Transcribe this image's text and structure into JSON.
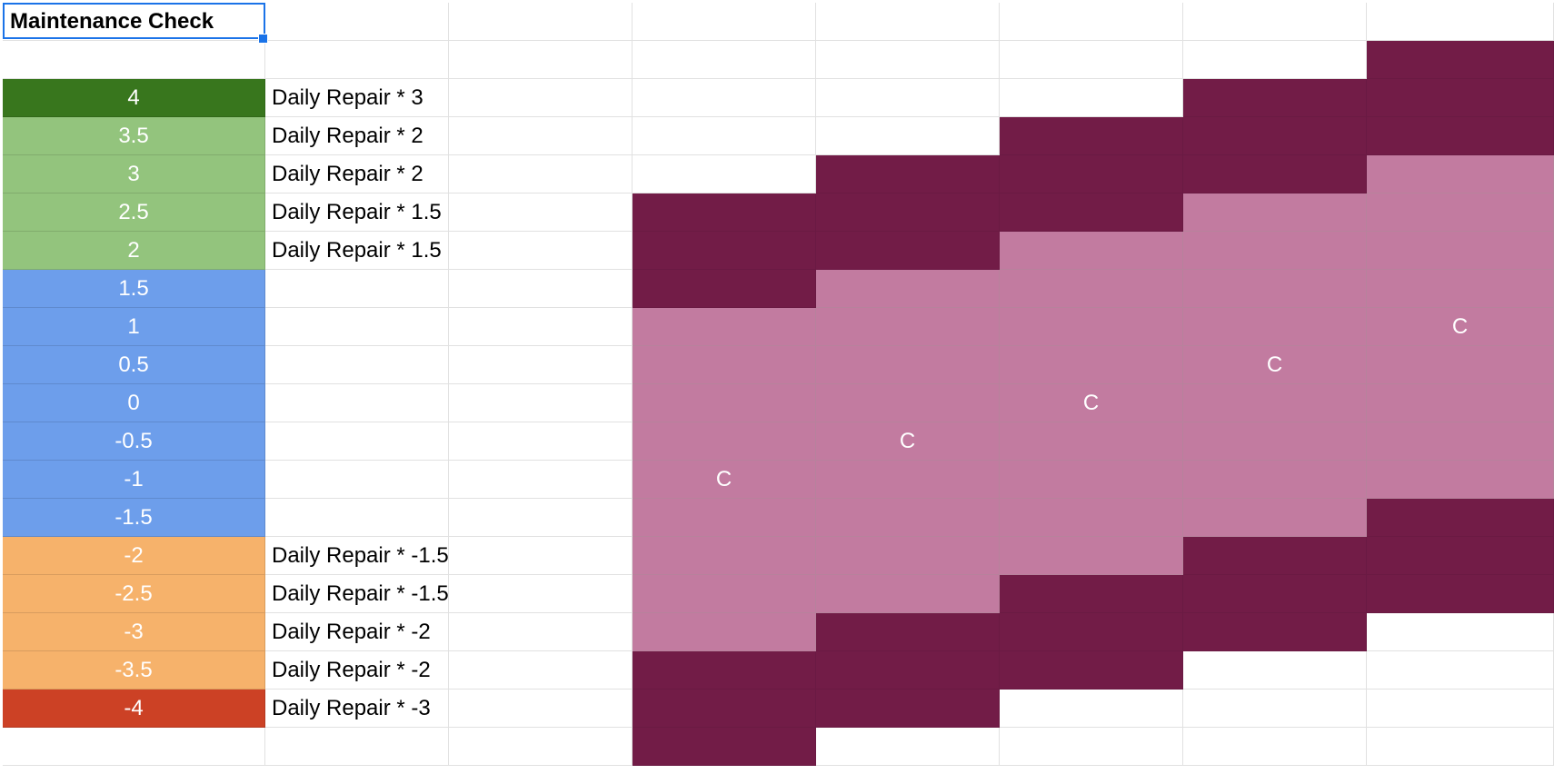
{
  "sheet": {
    "title": "Maintenance Check",
    "levels": [
      {
        "value": "4",
        "color": "#38761d",
        "repair": "Daily Repair * 3"
      },
      {
        "value": "3.5",
        "color": "#93c47d",
        "repair": "Daily Repair * 2"
      },
      {
        "value": "3",
        "color": "#93c47d",
        "repair": "Daily Repair * 2"
      },
      {
        "value": "2.5",
        "color": "#93c47d",
        "repair": "Daily Repair * 1.5"
      },
      {
        "value": "2",
        "color": "#93c47d",
        "repair": "Daily Repair * 1.5"
      },
      {
        "value": "1.5",
        "color": "#6d9eeb",
        "repair": ""
      },
      {
        "value": "1",
        "color": "#6d9eeb",
        "repair": ""
      },
      {
        "value": "0.5",
        "color": "#6d9eeb",
        "repair": ""
      },
      {
        "value": "0",
        "color": "#6d9eeb",
        "repair": ""
      },
      {
        "value": "-0.5",
        "color": "#6d9eeb",
        "repair": ""
      },
      {
        "value": "-1",
        "color": "#6d9eeb",
        "repair": ""
      },
      {
        "value": "-1.5",
        "color": "#6d9eeb",
        "repair": ""
      },
      {
        "value": "-2",
        "color": "#f6b26b",
        "repair": "Daily Repair * -1.5"
      },
      {
        "value": "-2.5",
        "color": "#f6b26b",
        "repair": "Daily Repair * -1.5"
      },
      {
        "value": "-3",
        "color": "#f6b26b",
        "repair": "Daily Repair * -2"
      },
      {
        "value": "-3.5",
        "color": "#f6b26b",
        "repair": "Daily Repair * -2"
      },
      {
        "value": "-4",
        "color": "#cc4125",
        "repair": "Daily Repair * -3"
      }
    ],
    "grid": [
      "....D",
      "...DD",
      "..DDD",
      ".DDDL",
      "DDDLL",
      "DDLLL",
      "DLLLL",
      "LLLLC",
      "LLLCL",
      "LLCLL",
      "LCLLL",
      "CLLLL",
      "LLLLD",
      "LLLDD",
      "LLDDD",
      "LDDD.",
      "DDD..",
      "DD...",
      "D...."
    ],
    "marker": "C",
    "colors": {
      "dark": "#721c47",
      "light": "#c27ba0",
      "selection": "#1a73e8",
      "gridline": "#e1e1e1"
    }
  }
}
